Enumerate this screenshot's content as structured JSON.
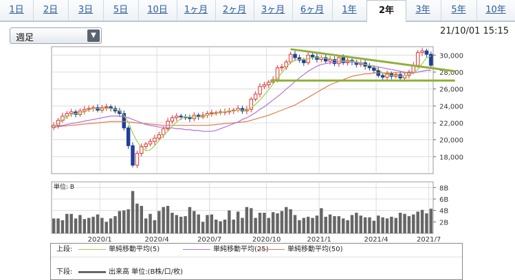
{
  "tabs": [
    "1日",
    "2日",
    "3日",
    "5日",
    "10日",
    "1ヶ月",
    "2ヶ月",
    "3ヶ月",
    "6ヶ月",
    "1年",
    "2年",
    "3年",
    "5年",
    "10年"
  ],
  "active_tab": "2年",
  "period_select": {
    "value": "週足"
  },
  "timestamp": "21/10/01 15:15",
  "colors": {
    "up": "#e03030",
    "down": "#1f3f9a",
    "ma5": "#9ad04a",
    "ma25": "#b070e0",
    "ma50": "#e07a4a",
    "trend": "#8fb03a",
    "volume": "#666666"
  },
  "chart_data": [
    {
      "type": "candlestick",
      "title": "",
      "ylim": [
        16000,
        31000
      ],
      "y_ticks": [
        "30,000",
        "28,000",
        "26,000",
        "24,000",
        "22,000",
        "20,000",
        "18,000"
      ],
      "x_ticks": [
        "2020/1",
        "2020/4",
        "2020/7",
        "2020/10",
        "2021/1",
        "2021/4",
        "2021/7"
      ],
      "close": [
        21700,
        22300,
        22800,
        23100,
        23300,
        23000,
        23400,
        23600,
        23700,
        23800,
        23500,
        23800,
        23900,
        23700,
        23400,
        23100,
        21400,
        19300,
        17000,
        18400,
        19200,
        19500,
        19800,
        20200,
        20600,
        21300,
        22200,
        22600,
        22800,
        22700,
        22600,
        22500,
        22900,
        22700,
        22900,
        23100,
        23200,
        23200,
        23300,
        23300,
        23400,
        23500,
        23700,
        23400,
        23600,
        24800,
        25400,
        26300,
        26500,
        26800,
        27100,
        28500,
        28600,
        29200,
        30100,
        29700,
        29400,
        29100,
        30000,
        29800,
        29500,
        29700,
        29300,
        29500,
        29000,
        29700,
        29100,
        29400,
        29200,
        28900,
        29100,
        28700,
        28500,
        28200,
        27600,
        27400,
        27800,
        27500,
        27700,
        27300,
        27600,
        28000,
        28800,
        30300,
        30500,
        30100,
        28800
      ],
      "ma5": [
        21600,
        21900,
        22300,
        22700,
        23000,
        23100,
        23200,
        23300,
        23500,
        23700,
        23700,
        23700,
        23700,
        23700,
        23600,
        23400,
        22900,
        22100,
        20800,
        19800,
        19100,
        18700,
        18800,
        19300,
        19900,
        20500,
        21000,
        21600,
        22100,
        22500,
        22700,
        22700,
        22700,
        22700,
        22800,
        22900,
        23000,
        23100,
        23200,
        23300,
        23400,
        23400,
        23500,
        23500,
        23500,
        23800,
        24200,
        24700,
        25300,
        25900,
        26600,
        27300,
        27900,
        28600,
        29100,
        29400,
        29500,
        29500,
        29600,
        29700,
        29700,
        29700,
        29600,
        29600,
        29400,
        29400,
        29300,
        29300,
        29300,
        29200,
        29100,
        28900,
        28800,
        28600,
        28300,
        27900,
        27700,
        27600,
        27600,
        27500,
        27600,
        27700,
        27900,
        28300,
        29000,
        29700,
        29900
      ],
      "ma25": [
        21500,
        21600,
        21700,
        21800,
        21900,
        22000,
        22100,
        22200,
        22300,
        22400,
        22500,
        22600,
        22700,
        22800,
        22800,
        22800,
        22700,
        22600,
        22400,
        22200,
        22000,
        21800,
        21700,
        21600,
        21500,
        21500,
        21400,
        21400,
        21300,
        21300,
        21200,
        21200,
        21100,
        21100,
        21000,
        21000,
        21000,
        21100,
        21300,
        21500,
        21700,
        21900,
        22100,
        22400,
        22600,
        22900,
        23200,
        23600,
        23900,
        24300,
        24700,
        25100,
        25500,
        26000,
        26400,
        26900,
        27300,
        27700,
        28100,
        28400,
        28700,
        28900,
        29000,
        29100,
        29100,
        29200,
        29200,
        29200,
        29200,
        29100,
        29000,
        28900,
        28800,
        28700,
        28600,
        28500,
        28400,
        28300,
        28200,
        28100,
        28000,
        27900,
        27900,
        28000,
        28100,
        28200,
        28200
      ],
      "ma50": [
        21500,
        21550,
        21600,
        21650,
        21700,
        21750,
        21800,
        21850,
        21900,
        21950,
        22000,
        22050,
        22100,
        22150,
        22150,
        22150,
        22150,
        22100,
        22050,
        22000,
        21950,
        21900,
        21850,
        21800,
        21750,
        21700,
        21700,
        21700,
        21700,
        21700,
        21700,
        21700,
        21700,
        21700,
        21700,
        21700,
        21750,
        21800,
        21850,
        21900,
        21950,
        22000,
        22050,
        22100,
        22150,
        22300,
        22450,
        22600,
        22750,
        22900,
        23100,
        23300,
        23500,
        23700,
        23900,
        24100,
        24400,
        24700,
        25000,
        25300,
        25600,
        25900,
        26200,
        26500,
        26700,
        26900,
        27100,
        27300,
        27500,
        27600,
        27700,
        27800,
        27800,
        27900,
        27900,
        27900,
        27900,
        27900,
        27900,
        27900,
        27900,
        27900,
        27900,
        28000,
        28100,
        28200,
        28200
      ],
      "trendline": {
        "from": [
          54,
          30700
        ],
        "to": [
          91,
          28100
        ]
      },
      "support": {
        "from": [
          50,
          27000
        ],
        "to": [
          91,
          27000
        ]
      }
    },
    {
      "type": "bar",
      "title": "",
      "ylabel": "単位: B",
      "ylim": [
        0,
        9
      ],
      "y_ticks": [
        "8B",
        "6B",
        "4B",
        "2B"
      ],
      "values": [
        2.6,
        2.6,
        2.3,
        3.4,
        3.4,
        2.6,
        3.2,
        2.5,
        2.7,
        2.9,
        3.3,
        2.7,
        2.0,
        2.6,
        3.0,
        3.9,
        4.0,
        4.2,
        7.4,
        5.2,
        4.8,
        2.6,
        3.4,
        2.3,
        3.9,
        4.6,
        4.8,
        3.6,
        3.2,
        2.9,
        3.0,
        4.6,
        3.9,
        3.3,
        2.0,
        3.2,
        3.3,
        2.4,
        2.1,
        2.4,
        4.0,
        2.4,
        3.8,
        2.7,
        4.6,
        4.4,
        2.7,
        3.6,
        3.6,
        2.7,
        3.7,
        3.5,
        3.9,
        4.6,
        4.2,
        3.2,
        2.3,
        2.7,
        2.9,
        2.7,
        3.1,
        4.4,
        2.9,
        3.3,
        3.0,
        3.0,
        2.6,
        2.3,
        3.2,
        3.6,
        3.1,
        2.8,
        2.8,
        2.2,
        3.1,
        2.8,
        2.6,
        2.9,
        2.7,
        3.6,
        3.4,
        3.0,
        3.3,
        3.8,
        4.1,
        3.5,
        4.3
      ]
    }
  ],
  "legend": {
    "upper_label": "上段:",
    "ma5_label": "単純移動平均(5)",
    "ma25_label": "単純移動平均(25)",
    "ma50_label": "単純移動平均(50)",
    "lower_label": "下段:",
    "volume_label": "出来高 単位:(B株/口/枚)"
  }
}
